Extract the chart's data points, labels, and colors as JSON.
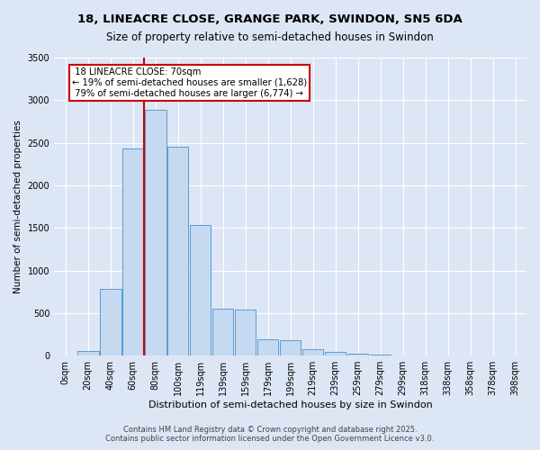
{
  "title_line1": "18, LINEACRE CLOSE, GRANGE PARK, SWINDON, SN5 6DA",
  "title_line2": "Size of property relative to semi-detached houses in Swindon",
  "xlabel": "Distribution of semi-detached houses by size in Swindon",
  "ylabel": "Number of semi-detached properties",
  "categories": [
    "0sqm",
    "20sqm",
    "40sqm",
    "60sqm",
    "80sqm",
    "100sqm",
    "119sqm",
    "139sqm",
    "159sqm",
    "179sqm",
    "199sqm",
    "219sqm",
    "239sqm",
    "259sqm",
    "279sqm",
    "299sqm",
    "318sqm",
    "338sqm",
    "358sqm",
    "378sqm",
    "398sqm"
  ],
  "values": [
    5,
    55,
    780,
    2430,
    2890,
    2450,
    1530,
    550,
    545,
    190,
    185,
    75,
    40,
    25,
    15,
    5,
    5,
    2,
    2,
    1,
    1
  ],
  "bar_color": "#c5d9f0",
  "bar_edge_color": "#5b9bd5",
  "vline_x_index": 3.5,
  "property_label": "18 LINEACRE CLOSE: 70sqm",
  "pct_smaller": 19,
  "count_smaller": 1628,
  "pct_larger": 79,
  "count_larger": 6774,
  "vline_color": "#cc0000",
  "annotation_box_color": "#cc0000",
  "ylim": [
    0,
    3500
  ],
  "yticks": [
    0,
    500,
    1000,
    1500,
    2000,
    2500,
    3000,
    3500
  ],
  "background_color": "#dce6f5",
  "fig_background_color": "#dce6f5",
  "footer_line1": "Contains HM Land Registry data © Crown copyright and database right 2025.",
  "footer_line2": "Contains public sector information licensed under the Open Government Licence v3.0.",
  "title1_fontsize": 9.5,
  "title2_fontsize": 8.5
}
